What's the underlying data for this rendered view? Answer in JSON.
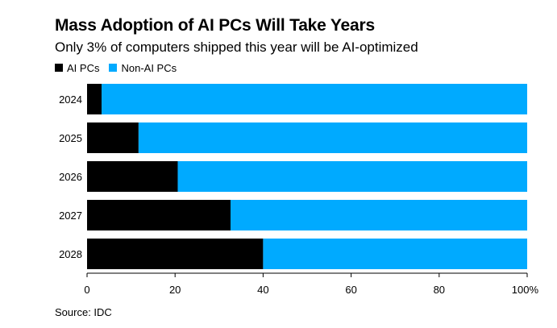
{
  "colors": {
    "ai": "#000000",
    "non_ai": "#00aaff",
    "axis": "#000000",
    "background": "#ffffff"
  },
  "legend": {
    "ai_label": "AI PCs",
    "non_ai_label": "Non-AI PCs"
  },
  "source": "Source: IDC",
  "chart_data": {
    "type": "bar",
    "orientation": "horizontal",
    "stacked": true,
    "title": "Mass Adoption of AI PCs Will Take Years",
    "subtitle": "Only 3% of computers shipped this year will be AI-optimized",
    "categories": [
      "2024",
      "2025",
      "2026",
      "2027",
      "2028"
    ],
    "series": [
      {
        "name": "AI PCs",
        "values": [
          3.3,
          11.7,
          20.6,
          32.6,
          40
        ]
      },
      {
        "name": "Non-AI PCs",
        "values": [
          96.7,
          88.3,
          79.4,
          67.4,
          60
        ]
      }
    ],
    "xlim": [
      0,
      100
    ],
    "xticks": [
      "0",
      "20",
      "40",
      "60",
      "80",
      "100%"
    ],
    "xtick_values": [
      0,
      20,
      40,
      60,
      80,
      100
    ],
    "xlabel": "",
    "ylabel": "",
    "grid": false,
    "legend_position": "top-left"
  }
}
